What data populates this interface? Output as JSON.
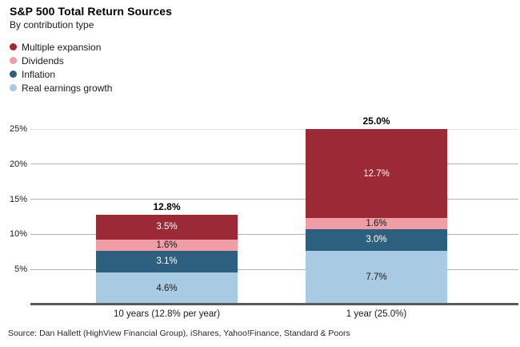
{
  "header": {
    "title": "S&P 500 Total Return Sources",
    "subtitle": "By contribution type"
  },
  "chart_data": {
    "type": "bar",
    "subtype": "stacked",
    "title": "S&P 500 Total Return Sources",
    "subtitle": "By contribution type",
    "categories": [
      "10 years (12.8% per year)",
      "1 year (25.0%)"
    ],
    "series": [
      {
        "name": "Multiple expansion",
        "color": "#9B2A36",
        "label_color": "#ffffff",
        "values": [
          3.5,
          12.7
        ]
      },
      {
        "name": "Dividends",
        "color": "#F09DA6",
        "label_color": "#1a1a1a",
        "values": [
          1.6,
          1.6
        ]
      },
      {
        "name": "Inflation",
        "color": "#2D5F7E",
        "label_color": "#ffffff",
        "values": [
          3.1,
          3.0
        ]
      },
      {
        "name": "Real earnings growth",
        "color": "#A8CAE2",
        "label_color": "#1a1a1a",
        "values": [
          4.6,
          7.7
        ]
      }
    ],
    "stack_order_note": "series listed top-to-bottom as drawn inside each bar",
    "totals": [
      12.8,
      25.0
    ],
    "total_labels": [
      "12.8%",
      "25.0%"
    ],
    "value_suffix": "%",
    "y_tick_values": [
      5,
      10,
      15,
      20,
      25
    ],
    "y_tick_labels": [
      "5%",
      "10%",
      "15%",
      "20%",
      "25%"
    ],
    "ylim": [
      0,
      25
    ],
    "grid": true,
    "legend_position": "top-left"
  },
  "footer": {
    "source": "Source: Dan Hallett (HighView Financial Group), iShares, Yahoo!Finance, Standard & Poors"
  }
}
